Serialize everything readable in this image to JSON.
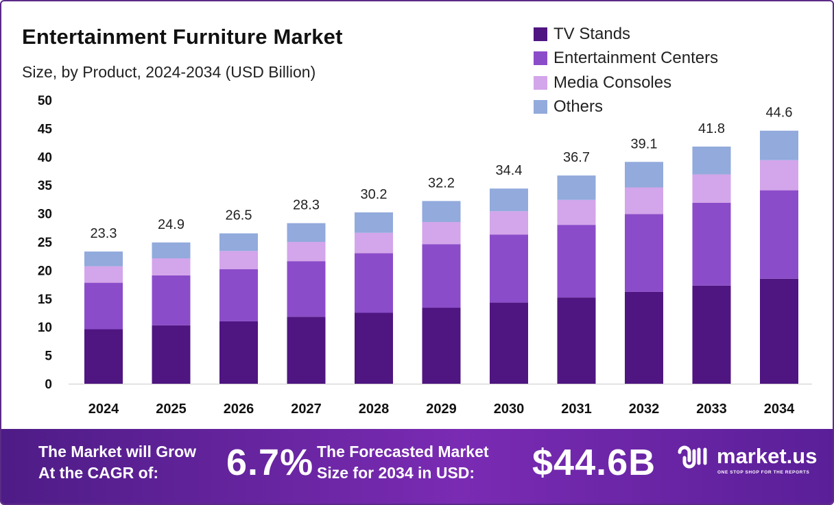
{
  "header": {
    "title": "Entertainment Furniture Market",
    "subtitle": "Size, by Product, 2024-2034 (USD Billion)"
  },
  "colors": {
    "tv_stands": "#4f1581",
    "entertainment_centers": "#8b4cc9",
    "media_consoles": "#d3a5ea",
    "others": "#92aadc"
  },
  "chart_data": {
    "type": "bar",
    "stacked": true,
    "categories": [
      "2024",
      "2025",
      "2026",
      "2027",
      "2028",
      "2029",
      "2030",
      "2031",
      "2032",
      "2033",
      "2034"
    ],
    "series": [
      {
        "name": "TV Stands",
        "values": [
          9.6,
          10.3,
          11.0,
          11.8,
          12.5,
          13.4,
          14.3,
          15.2,
          16.2,
          17.3,
          18.5
        ]
      },
      {
        "name": "Entertainment Centers",
        "values": [
          8.2,
          8.8,
          9.2,
          9.8,
          10.5,
          11.2,
          12.0,
          12.8,
          13.7,
          14.6,
          15.6
        ]
      },
      {
        "name": "Media Consoles",
        "values": [
          2.9,
          3.0,
          3.2,
          3.4,
          3.6,
          3.9,
          4.1,
          4.4,
          4.7,
          5.0,
          5.3
        ]
      },
      {
        "name": "Others",
        "values": [
          2.6,
          2.8,
          3.1,
          3.3,
          3.6,
          3.7,
          4.0,
          4.3,
          4.5,
          4.9,
          5.2
        ]
      }
    ],
    "totals": [
      "23.3",
      "24.9",
      "26.5",
      "28.3",
      "30.2",
      "32.2",
      "34.4",
      "36.7",
      "39.1",
      "41.8",
      "44.6"
    ],
    "yticks": [
      "0",
      "5",
      "10",
      "15",
      "20",
      "25",
      "30",
      "35",
      "40",
      "45",
      "50"
    ],
    "ylim": [
      0,
      50
    ],
    "grid": false,
    "legend_position": "top-right"
  },
  "banner": {
    "cagr_label_line1": "The Market will Grow",
    "cagr_label_line2": "At the CAGR of:",
    "cagr_value": "6.7%",
    "forecast_label_line1": "The Forecasted Market",
    "forecast_label_line2": "Size for 2034 in USD:",
    "forecast_value": "$44.6B",
    "brand_name": "market.us",
    "brand_tagline": "ONE STOP SHOP FOR THE REPORTS"
  }
}
